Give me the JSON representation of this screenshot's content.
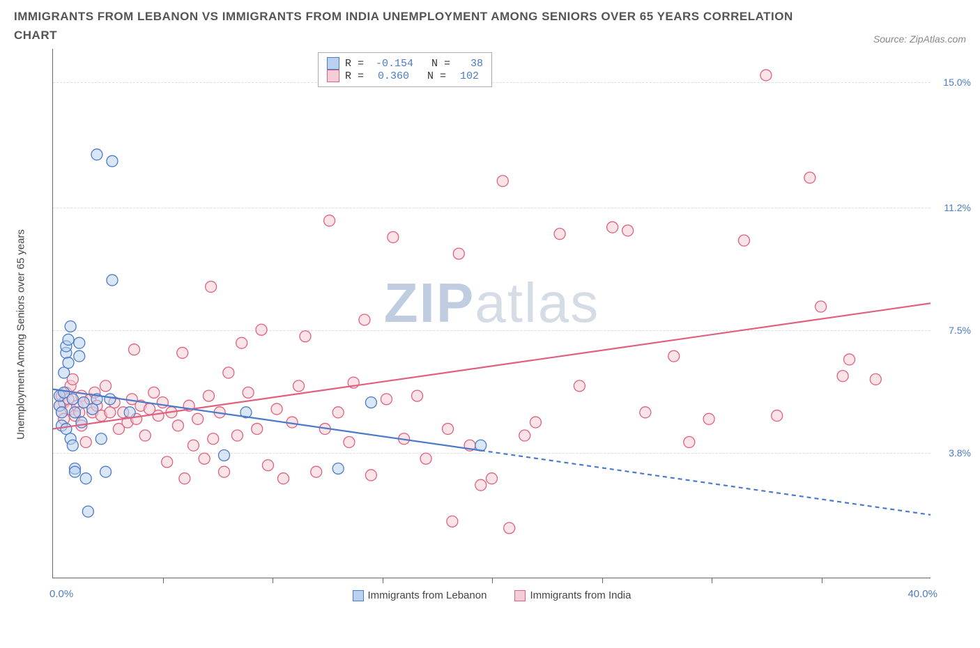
{
  "title_line1": "IMMIGRANTS FROM LEBANON VS IMMIGRANTS FROM INDIA UNEMPLOYMENT AMONG SENIORS OVER 65 YEARS CORRELATION",
  "title_line2": "CHART",
  "source": "Source: ZipAtlas.com",
  "y_axis_label": "Unemployment Among Seniors over 65 years",
  "watermark": {
    "bold": "ZIP",
    "light": "atlas"
  },
  "x_axis": {
    "min": 0,
    "max": 40,
    "left_label": "0.0%",
    "right_label": "40.0%",
    "tick_step": 5
  },
  "y_axis": {
    "min": 0,
    "max": 16,
    "ticks": [
      {
        "value": 3.8,
        "label": "3.8%"
      },
      {
        "value": 7.5,
        "label": "7.5%"
      },
      {
        "value": 11.2,
        "label": "11.2%"
      },
      {
        "value": 15.0,
        "label": "15.0%"
      }
    ]
  },
  "series": {
    "lebanon": {
      "label": "Immigrants from Lebanon",
      "fill": "#b9d1ee",
      "stroke": "#4a7ac8",
      "R": "-0.154",
      "N": "38",
      "trend": {
        "y_at_x0": 5.7,
        "y_at_x40": 1.9,
        "solid_until_x": 19.5
      },
      "points": [
        [
          0.3,
          5.2
        ],
        [
          0.3,
          5.5
        ],
        [
          0.4,
          5.0
        ],
        [
          0.4,
          4.6
        ],
        [
          0.5,
          5.6
        ],
        [
          0.5,
          6.2
        ],
        [
          0.6,
          6.8
        ],
        [
          0.6,
          7.0
        ],
        [
          0.6,
          4.5
        ],
        [
          0.7,
          6.5
        ],
        [
          0.7,
          7.2
        ],
        [
          0.8,
          4.2
        ],
        [
          0.8,
          7.6
        ],
        [
          0.9,
          5.4
        ],
        [
          0.9,
          4.0
        ],
        [
          1.0,
          5.0
        ],
        [
          1.0,
          3.3
        ],
        [
          1.0,
          3.2
        ],
        [
          1.2,
          6.7
        ],
        [
          1.2,
          7.1
        ],
        [
          1.3,
          4.7
        ],
        [
          1.4,
          5.3
        ],
        [
          1.5,
          3.0
        ],
        [
          1.6,
          2.0
        ],
        [
          1.8,
          5.1
        ],
        [
          2.0,
          5.4
        ],
        [
          2.0,
          12.8
        ],
        [
          2.2,
          4.2
        ],
        [
          2.4,
          3.2
        ],
        [
          2.6,
          5.4
        ],
        [
          2.7,
          12.6
        ],
        [
          2.7,
          9.0
        ],
        [
          3.5,
          5.0
        ],
        [
          7.8,
          3.7
        ],
        [
          8.8,
          5.0
        ],
        [
          13.0,
          3.3
        ],
        [
          14.5,
          5.3
        ],
        [
          19.5,
          4.0
        ]
      ]
    },
    "india": {
      "label": "Immigrants from India",
      "fill": "#f5cdd6",
      "stroke": "#e0607d",
      "R": "0.360",
      "N": "102",
      "trend": {
        "y_at_x0": 4.5,
        "y_at_x40": 8.3,
        "solid_until_x": 40
      },
      "points": [
        [
          0.3,
          5.2
        ],
        [
          0.4,
          5.5
        ],
        [
          0.4,
          5.0
        ],
        [
          0.5,
          4.8
        ],
        [
          0.5,
          5.3
        ],
        [
          0.6,
          5.6
        ],
        [
          0.7,
          5.4
        ],
        [
          0.8,
          5.8
        ],
        [
          0.8,
          5.1
        ],
        [
          0.9,
          6.0
        ],
        [
          1.0,
          4.9
        ],
        [
          1.1,
          5.2
        ],
        [
          1.2,
          5.0
        ],
        [
          1.3,
          5.5
        ],
        [
          1.3,
          4.6
        ],
        [
          1.4,
          5.3
        ],
        [
          1.5,
          4.1
        ],
        [
          1.7,
          5.4
        ],
        [
          1.8,
          5.0
        ],
        [
          1.9,
          5.6
        ],
        [
          2.0,
          5.2
        ],
        [
          2.2,
          4.9
        ],
        [
          2.4,
          5.8
        ],
        [
          2.6,
          5.0
        ],
        [
          2.8,
          5.3
        ],
        [
          3.0,
          4.5
        ],
        [
          3.2,
          5.0
        ],
        [
          3.4,
          4.7
        ],
        [
          3.6,
          5.4
        ],
        [
          3.7,
          6.9
        ],
        [
          3.8,
          4.8
        ],
        [
          4.0,
          5.2
        ],
        [
          4.2,
          4.3
        ],
        [
          4.4,
          5.1
        ],
        [
          4.6,
          5.6
        ],
        [
          4.8,
          4.9
        ],
        [
          5.0,
          5.3
        ],
        [
          5.2,
          3.5
        ],
        [
          5.4,
          5.0
        ],
        [
          5.7,
          4.6
        ],
        [
          5.9,
          6.8
        ],
        [
          6.0,
          3.0
        ],
        [
          6.2,
          5.2
        ],
        [
          6.4,
          4.0
        ],
        [
          6.6,
          4.8
        ],
        [
          6.9,
          3.6
        ],
        [
          7.1,
          5.5
        ],
        [
          7.2,
          8.8
        ],
        [
          7.3,
          4.2
        ],
        [
          7.6,
          5.0
        ],
        [
          7.8,
          3.2
        ],
        [
          8.0,
          6.2
        ],
        [
          8.4,
          4.3
        ],
        [
          8.6,
          7.1
        ],
        [
          8.9,
          5.6
        ],
        [
          9.3,
          4.5
        ],
        [
          9.5,
          7.5
        ],
        [
          9.8,
          3.4
        ],
        [
          10.2,
          5.1
        ],
        [
          10.5,
          3.0
        ],
        [
          10.9,
          4.7
        ],
        [
          11.2,
          5.8
        ],
        [
          11.5,
          7.3
        ],
        [
          12.0,
          3.2
        ],
        [
          12.4,
          4.5
        ],
        [
          12.6,
          10.8
        ],
        [
          13.0,
          5.0
        ],
        [
          13.5,
          4.1
        ],
        [
          13.7,
          5.9
        ],
        [
          14.2,
          7.8
        ],
        [
          14.5,
          3.1
        ],
        [
          15.2,
          5.4
        ],
        [
          15.5,
          10.3
        ],
        [
          16.0,
          4.2
        ],
        [
          16.6,
          5.5
        ],
        [
          17.0,
          3.6
        ],
        [
          18.0,
          4.5
        ],
        [
          18.2,
          1.7
        ],
        [
          18.5,
          9.8
        ],
        [
          19.0,
          4.0
        ],
        [
          19.5,
          2.8
        ],
        [
          20.0,
          3.0
        ],
        [
          20.5,
          12.0
        ],
        [
          20.8,
          1.5
        ],
        [
          21.5,
          4.3
        ],
        [
          22.0,
          4.7
        ],
        [
          23.1,
          10.4
        ],
        [
          24.0,
          5.8
        ],
        [
          25.5,
          10.6
        ],
        [
          26.2,
          10.5
        ],
        [
          27.0,
          5.0
        ],
        [
          28.3,
          6.7
        ],
        [
          29.0,
          4.1
        ],
        [
          29.9,
          4.8
        ],
        [
          31.5,
          10.2
        ],
        [
          32.5,
          15.2
        ],
        [
          33.0,
          4.9
        ],
        [
          34.5,
          12.1
        ],
        [
          35.0,
          8.2
        ],
        [
          36.3,
          6.6
        ],
        [
          37.5,
          6.0
        ],
        [
          36.0,
          6.1
        ]
      ]
    }
  }
}
